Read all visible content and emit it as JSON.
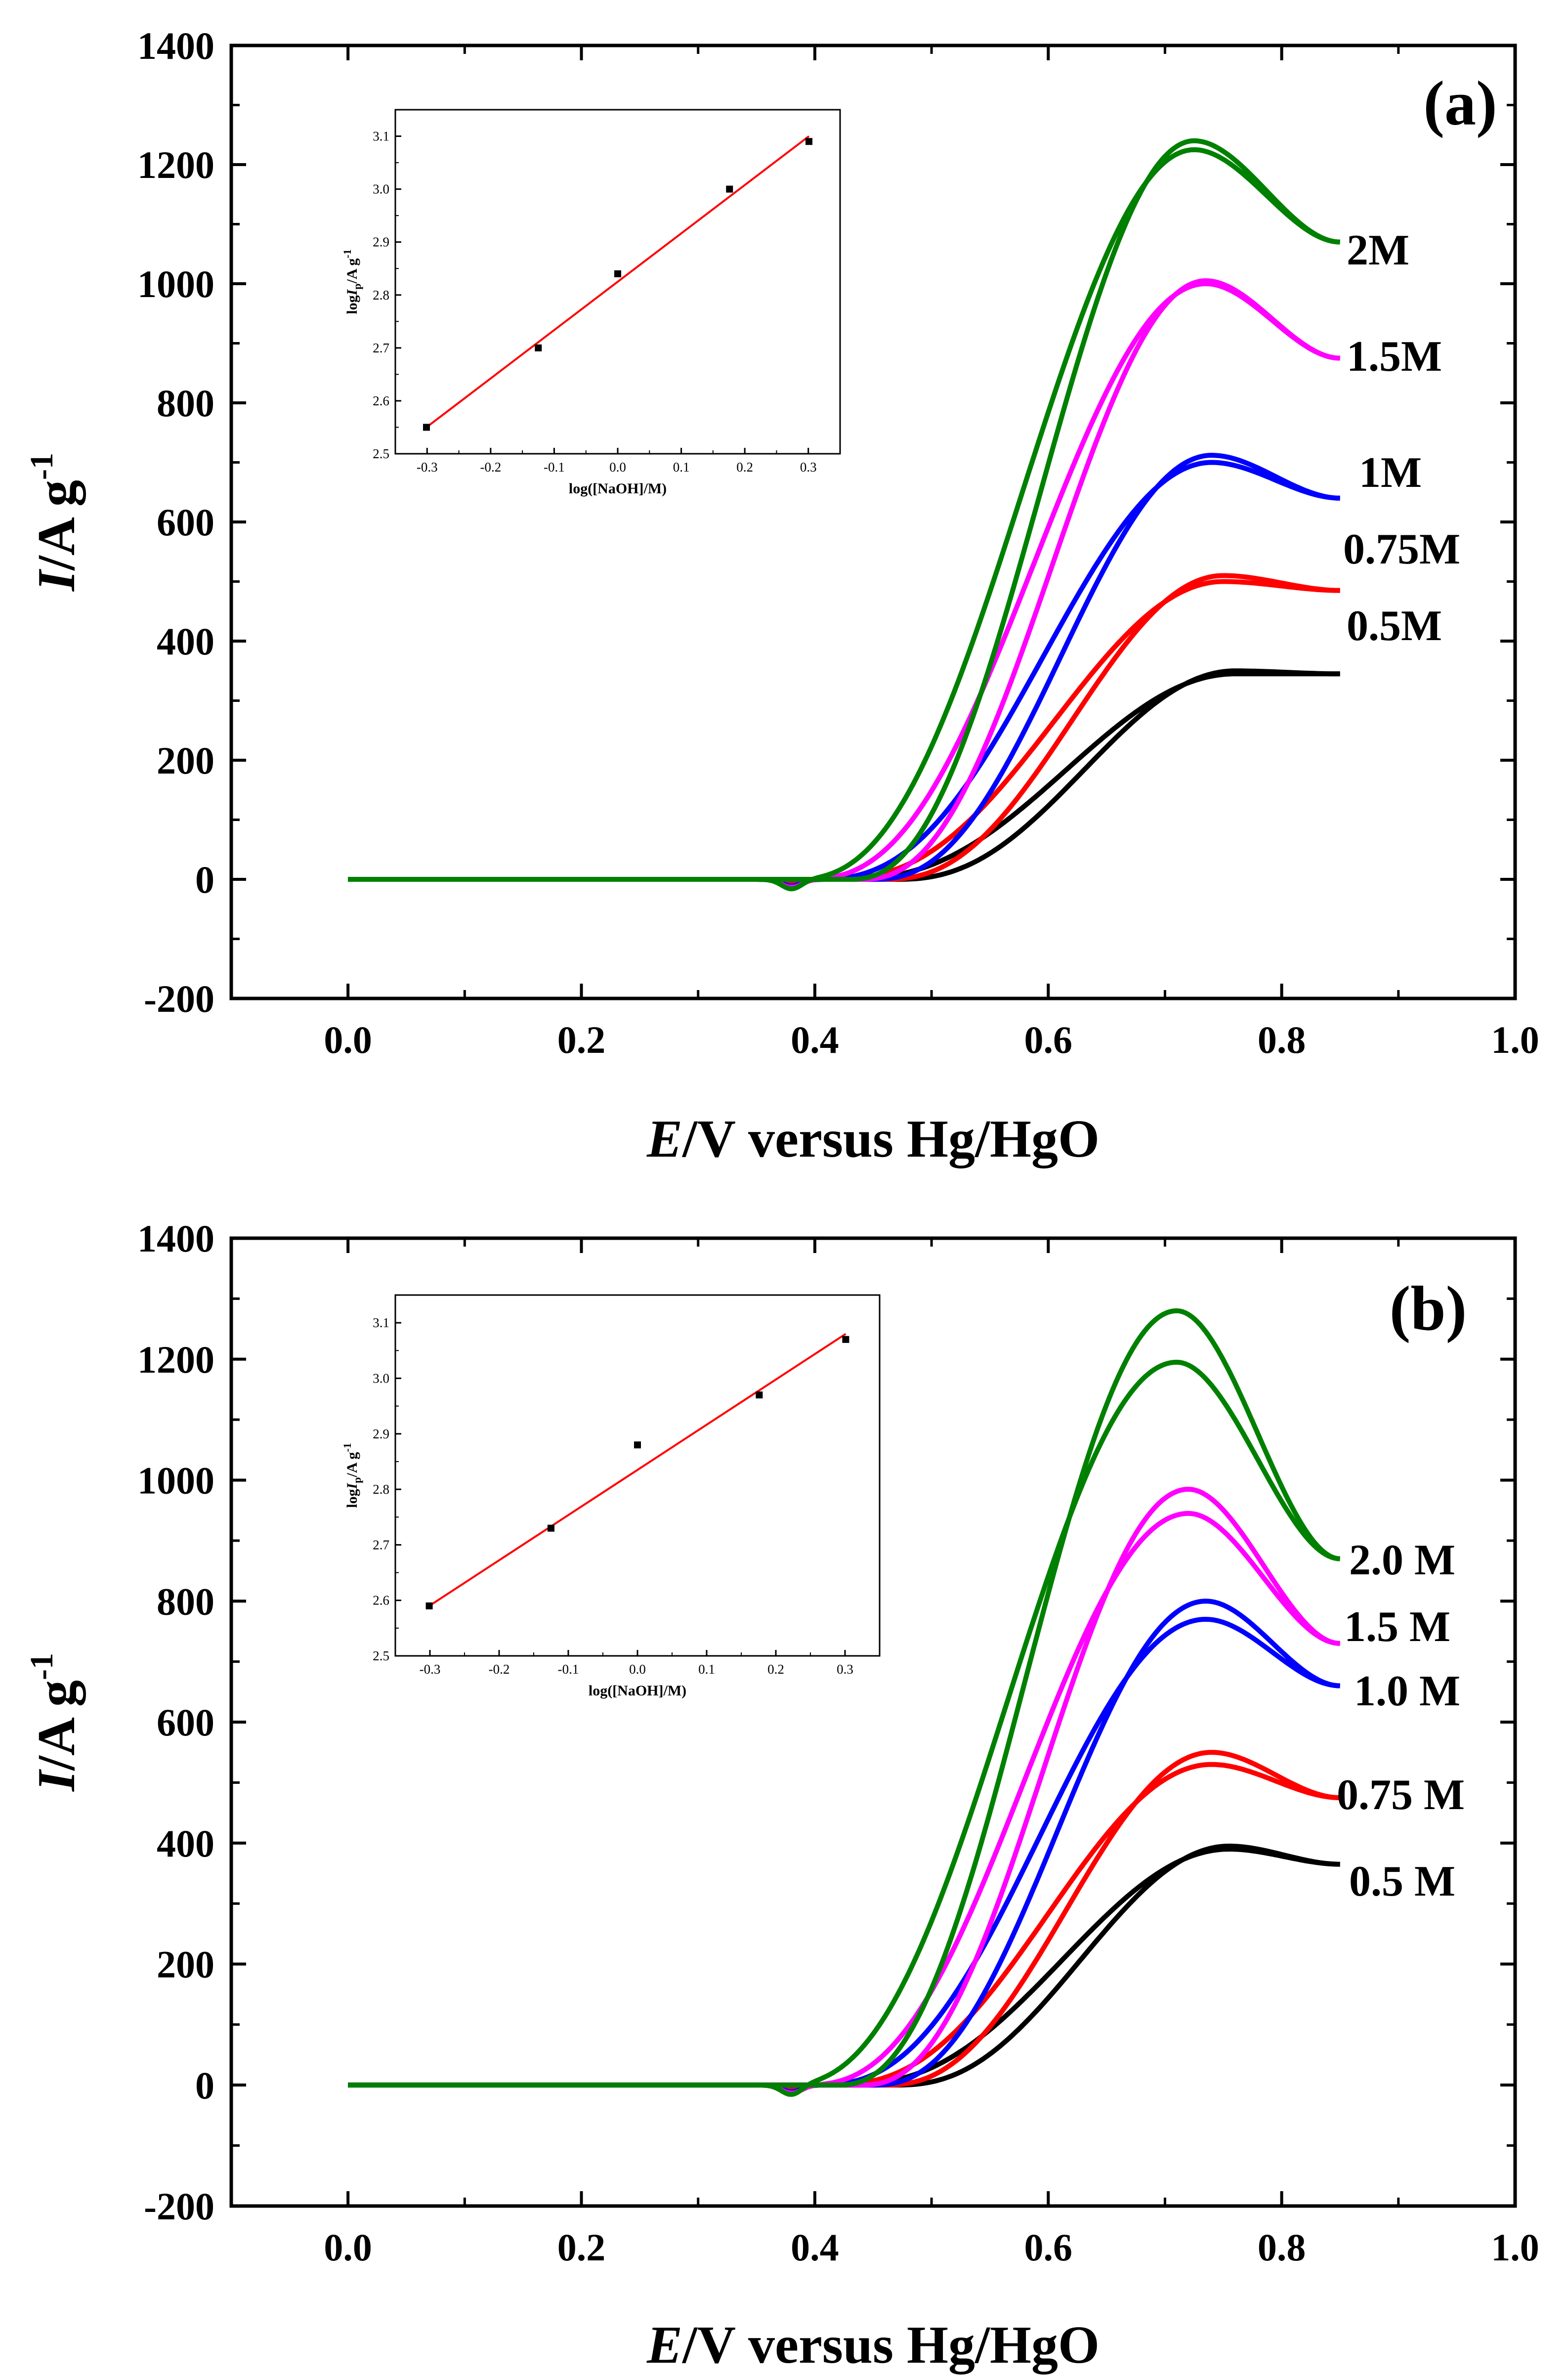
{
  "chart_data": [
    {
      "panel": "(a)",
      "type": "line",
      "xlabel": {
        "italic": "E",
        "rest": "/V versus Hg/HgO"
      },
      "ylabel": {
        "italic": "I",
        "rest": "/A g",
        "sup": "-1"
      },
      "xlim": [
        -0.1,
        1.0
      ],
      "ylim": [
        -200,
        1400
      ],
      "xticks": [
        "0.0",
        "0.2",
        "0.4",
        "0.6",
        "0.8",
        "1.0"
      ],
      "yticks": [
        "-200",
        "0",
        "200",
        "400",
        "600",
        "800",
        "1000",
        "1200",
        "1400"
      ],
      "series": [
        {
          "name": "0.5M",
          "color": "#000000",
          "onset": 0.47,
          "peak_x": 0.76,
          "peak_fwd": 350,
          "peak_rev": 345,
          "end": 345,
          "split": 0.003
        },
        {
          "name": "0.75M",
          "color": "#ff0000",
          "onset": 0.46,
          "peak_x": 0.75,
          "peak_fwd": 510,
          "peak_rev": 500,
          "end": 485,
          "split": 0.004
        },
        {
          "name": "1M",
          "color": "#0000ff",
          "onset": 0.45,
          "peak_x": 0.74,
          "peak_fwd": 712,
          "peak_rev": 700,
          "end": 640,
          "split": 0.005
        },
        {
          "name": "1.5M",
          "color": "#ff00ff",
          "onset": 0.44,
          "peak_x": 0.735,
          "peak_fwd": 1005,
          "peak_rev": 1000,
          "end": 875,
          "split": 0.007
        },
        {
          "name": "2M",
          "color": "#008000",
          "onset": 0.43,
          "peak_x": 0.725,
          "peak_fwd": 1240,
          "peak_rev": 1225,
          "end": 1070,
          "split": 0.009
        }
      ],
      "inset": {
        "type": "scatter",
        "xlabel": "log([NaOH]/M)",
        "ylabel": {
          "pre": "log",
          "italic": "I",
          "sub": "p",
          "post": "/A g",
          "sup": "-1"
        },
        "xlim": [
          -0.35,
          0.35
        ],
        "ylim": [
          2.5,
          3.15
        ],
        "xticks": [
          "-0.3",
          "-0.2",
          "-0.1",
          "0.0",
          "0.1",
          "0.2",
          "0.3"
        ],
        "yticks": [
          "2.5",
          "2.6",
          "2.7",
          "2.8",
          "2.9",
          "3.0",
          "3.1"
        ],
        "x": [
          -0.301,
          -0.125,
          0.0,
          0.176,
          0.301
        ],
        "y": [
          2.55,
          2.7,
          2.84,
          3.0,
          3.09
        ],
        "fit": [
          [
            -0.301,
            2.55
          ],
          [
            0.301,
            3.1
          ]
        ],
        "marker_color": "#000000",
        "fit_color": "#ff0000"
      }
    },
    {
      "panel": "(b)",
      "type": "line",
      "xlabel": {
        "italic": "E",
        "rest": "/V versus Hg/HgO"
      },
      "ylabel": {
        "italic": "I",
        "rest": "/A g",
        "sup": "-1"
      },
      "xlim": [
        -0.1,
        1.0
      ],
      "ylim": [
        -200,
        1400
      ],
      "xticks": [
        "0.0",
        "0.2",
        "0.4",
        "0.6",
        "0.8",
        "1.0"
      ],
      "yticks": [
        "-200",
        "0",
        "200",
        "400",
        "600",
        "800",
        "1000",
        "1200",
        "1400"
      ],
      "series": [
        {
          "name": "0.5 M",
          "color": "#000000",
          "onset": 0.47,
          "peak_x": 0.755,
          "peak_fwd": 395,
          "peak_rev": 390,
          "end": 365,
          "split": 0.004
        },
        {
          "name": "0.75 M",
          "color": "#ff0000",
          "onset": 0.46,
          "peak_x": 0.74,
          "peak_fwd": 550,
          "peak_rev": 530,
          "end": 475,
          "split": 0.006
        },
        {
          "name": "1.0 M",
          "color": "#0000ff",
          "onset": 0.45,
          "peak_x": 0.735,
          "peak_fwd": 800,
          "peak_rev": 770,
          "end": 660,
          "split": 0.008
        },
        {
          "name": "1.5 M",
          "color": "#ff00ff",
          "onset": 0.44,
          "peak_x": 0.72,
          "peak_fwd": 985,
          "peak_rev": 945,
          "end": 730,
          "split": 0.01
        },
        {
          "name": "2.0 M",
          "color": "#008000",
          "onset": 0.42,
          "peak_x": 0.71,
          "peak_fwd": 1280,
          "peak_rev": 1195,
          "end": 870,
          "split": 0.012
        }
      ],
      "inset": {
        "type": "scatter",
        "xlabel": "log([NaOH]/M)",
        "ylabel": {
          "pre": "log",
          "italic": "I",
          "sub": "p",
          "post": "/A g",
          "sup": "-1"
        },
        "xlim": [
          -0.35,
          0.35
        ],
        "ylim": [
          2.5,
          3.15
        ],
        "xticks": [
          "-0.3",
          "-0.2",
          "-0.1",
          "0.0",
          "0.1",
          "0.2",
          "0.3"
        ],
        "yticks": [
          "2.5",
          "2.6",
          "2.7",
          "2.8",
          "2.9",
          "3.0",
          "3.1"
        ],
        "x": [
          -0.301,
          -0.125,
          0.0,
          0.176,
          0.301
        ],
        "y": [
          2.59,
          2.73,
          2.88,
          2.97,
          3.07
        ],
        "fit": [
          [
            -0.301,
            2.59
          ],
          [
            0.301,
            3.08
          ]
        ],
        "marker_color": "#000000",
        "fit_color": "#ff0000"
      }
    }
  ]
}
